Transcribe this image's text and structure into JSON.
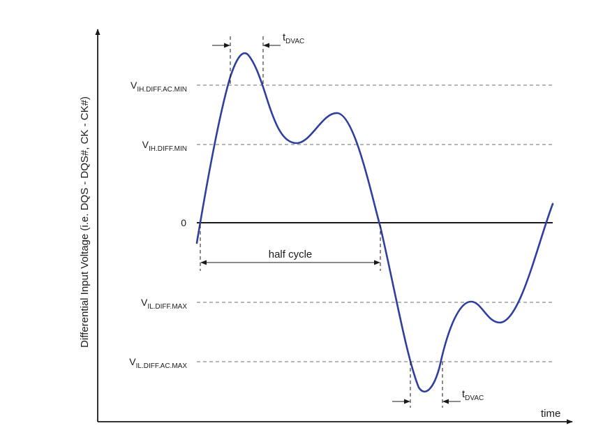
{
  "y_axis_label": "Differential Input Voltage (i.e. DQS - DQS#, CK - CK#)",
  "x_axis_label": "time",
  "levels": {
    "vih_ac": {
      "main": "V",
      "sub": "IH.DIFF.AC.MIN"
    },
    "vih_dc": {
      "main": "V",
      "sub": "IH.DIFF.MIN"
    },
    "zero": {
      "main": "0"
    },
    "vil_dc": {
      "main": "V",
      "sub": "IL.DIFF.MAX"
    },
    "vil_ac": {
      "main": "V",
      "sub": "IL.DIFF.AC.MAX"
    }
  },
  "annotations": {
    "half_cycle": "half cycle",
    "tdvac_top": {
      "main": "t",
      "sub": "DVAC"
    },
    "tdvac_bottom": {
      "main": "t",
      "sub": "DVAC"
    }
  },
  "colors": {
    "waveform": "#2e3f9e",
    "axis": "#1a1a1a",
    "dashed_levels": "#6e6e6e"
  }
}
